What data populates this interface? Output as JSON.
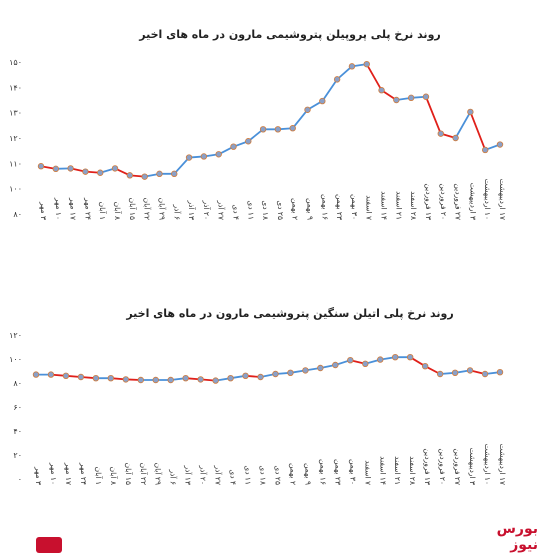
{
  "brand_label": "بورس نیوز",
  "colors": {
    "line_up": "#4a90d9",
    "line_down": "#e0201a",
    "marker": "#8aa0c8",
    "marker_edge": "#d07b3b"
  },
  "chart_data": [
    {
      "type": "line",
      "title": "روند نرخ پلی پروپیلن پتروشیمی مارون در ماه های اخیر",
      "ylim": [
        80,
        150
      ],
      "yticks": [
        "۸۰",
        "۱۰۰",
        "۱۱۰",
        "۱۲۰",
        "۱۳۰",
        "۱۴۰",
        "۱۵۰"
      ],
      "ytick_values": [
        80,
        100,
        110,
        120,
        130,
        140,
        150
      ],
      "categories": [
        "۳ مهر",
        "۱۰ مهر",
        "۱۷ مهر",
        "۲۴ مهر",
        "۱ آبان",
        "۸ آبان",
        "۱۵ آبان",
        "۲۲ آبان",
        "۲۹ آبان",
        "۶ آذر",
        "۱۳ آذر",
        "۲۰ آذر",
        "۲۷ آذر",
        "۴ دی",
        "۱۱ دی",
        "۱۸ دی",
        "۲۵ دی",
        "۲ بهمن",
        "۹ بهمن",
        "۱۶ بهمن",
        "۲۳ بهمن",
        "۳۰ بهمن",
        "۷ اسفند",
        "۱۴ اسفند",
        "۲۱ اسفند",
        "۲۸ اسفند",
        "۱۳ فروردین",
        "۲۰ فروردین",
        "۲۷ فروردین",
        "۳ اردیبهشت",
        "۱۰ اردیبهشت",
        "۱۷ اردیبهشت"
      ],
      "values": [
        102,
        100.8,
        101,
        99.5,
        99,
        101,
        97.8,
        97.2,
        98.5,
        98.5,
        106,
        106.5,
        107.5,
        111,
        113.5,
        119,
        119,
        119.5,
        128,
        132,
        142,
        148,
        149,
        137,
        132.5,
        133.5,
        134,
        117,
        115,
        127,
        109.5,
        112
      ]
    },
    {
      "type": "line",
      "title": "روند نرخ پلی اتیلن سنگین پتروشیمی مارون در ماه های اخیر",
      "ylim": [
        0,
        120
      ],
      "yticks": [
        "۰",
        "۲۰",
        "۴۰",
        "۶۰",
        "۸۰",
        "۱۰۰",
        "۱۲۰"
      ],
      "ytick_values": [
        0,
        20,
        40,
        60,
        80,
        100,
        120
      ],
      "categories": [
        "۳ مهر",
        "۱۰ مهر",
        "۱۷ مهر",
        "۲۴ مهر",
        "۱ آبان",
        "۸ آبان",
        "۱۵ آبان",
        "۲۲ آبان",
        "۲۹ آبان",
        "۶ آذر",
        "۱۳ آذر",
        "۲۰ آذر",
        "۲۷ آذر",
        "۴ دی",
        "۱۱ دی",
        "۱۸ دی",
        "۲۵ دی",
        "۲ بهمن",
        "۹ بهمن",
        "۱۶ بهمن",
        "۲۳ بهمن",
        "۳۰ بهمن",
        "۷ اسفند",
        "۱۴ اسفند",
        "۲۱ اسفند",
        "۲۸ اسفند",
        "۱۳ فروردین",
        "۲۰ فروردین",
        "۲۷ فروردین",
        "۳ اردیبهشت",
        "۱۰ اردیبهشت",
        "۱۷ اردیبهشت"
      ],
      "values": [
        87,
        87,
        86,
        85,
        84,
        84,
        83,
        82.5,
        82.5,
        82.5,
        84,
        83,
        82,
        84,
        86,
        85,
        87.5,
        88.5,
        90.5,
        92.5,
        95,
        99,
        96,
        99.5,
        101.5,
        101.5,
        94,
        87.5,
        88.5,
        90.5,
        87.5,
        89
      ]
    }
  ]
}
